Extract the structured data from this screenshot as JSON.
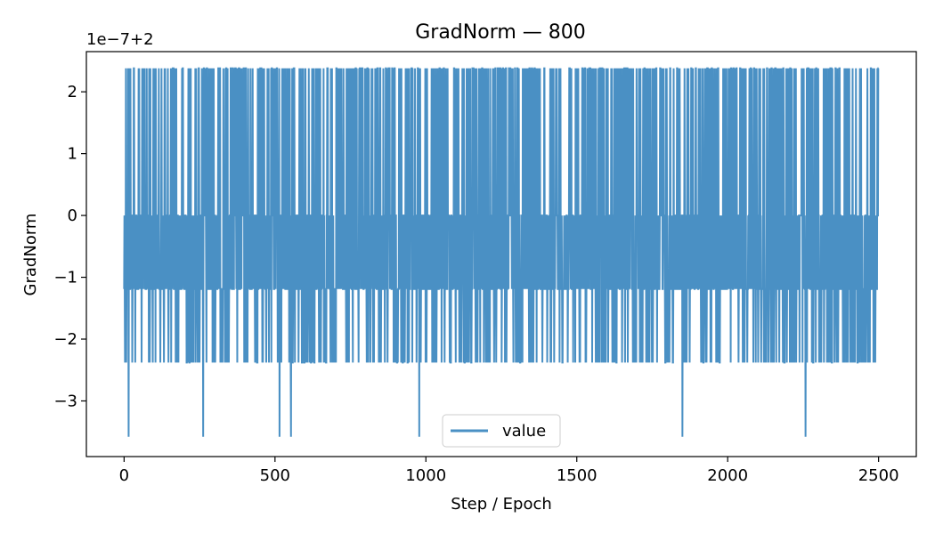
{
  "chart_data": {
    "type": "line",
    "title": "GradNorm — 800",
    "xlabel": "Step / Epoch",
    "ylabel": "GradNorm",
    "offset_label": "1e−7+2",
    "xlim": [
      -125,
      2625
    ],
    "ylim": [
      -3.9,
      2.65
    ],
    "x_ticks": [
      0,
      500,
      1000,
      1500,
      2000,
      2500
    ],
    "y_ticks": [
      -3,
      -2,
      -1,
      0,
      1,
      2
    ],
    "y_tick_labels": [
      "−3",
      "−2",
      "−1",
      "0",
      "1",
      "2"
    ],
    "legend": {
      "entries": [
        "value"
      ],
      "placement": "lower-center"
    },
    "grid": false,
    "series": [
      {
        "name": "value",
        "color": "#4a90c4",
        "x_start": 0,
        "x_end": 2500,
        "levels": [
          2.38,
          0,
          -1.19,
          -2.38,
          -3.58
        ],
        "level_weights": [
          0.22,
          0.3,
          0.36,
          0.1,
          0.02
        ],
        "spikes_down": [
          {
            "x": 15,
            "y": -3.58
          },
          {
            "x": 262,
            "y": -3.58
          },
          {
            "x": 515,
            "y": -3.58
          },
          {
            "x": 553,
            "y": -3.58
          },
          {
            "x": 978,
            "y": -3.58
          },
          {
            "x": 1850,
            "y": -3.58
          },
          {
            "x": 2258,
            "y": -3.58
          }
        ]
      }
    ]
  }
}
